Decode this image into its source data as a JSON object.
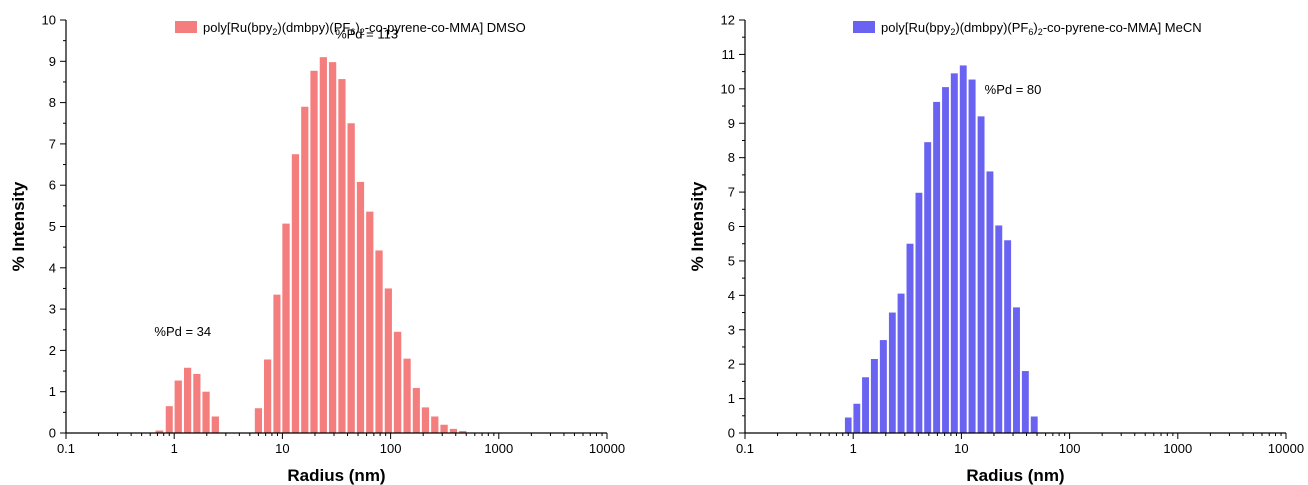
{
  "chart_data": [
    {
      "type": "bar",
      "x_scale": "log",
      "xlabel": "Radius (nm)",
      "ylabel": "% Intensity",
      "xlim": [
        0.1,
        10000
      ],
      "ylim": [
        0,
        10
      ],
      "x_tick_labels": [
        "0.1",
        "1",
        "10",
        "100",
        "1000",
        "10000"
      ],
      "y_tick_labels": [
        "0",
        "1",
        "2",
        "3",
        "4",
        "5",
        "6",
        "7",
        "8",
        "9",
        "10"
      ],
      "grid": false,
      "legend_position": "top-right",
      "color": "#f47e7e",
      "series": [
        {
          "name": {
            "pre": "poly[Ru(bpy",
            "s1": "2",
            "mid1": ")(dmbpy)(PF",
            "s2": "6",
            "mid2": ")",
            "s3": "2",
            "post": "-co-pyrene-co-MMA] DMSO"
          },
          "x": [
            0.73,
            0.9,
            1.09,
            1.33,
            1.62,
            1.97,
            2.4,
            2.93,
            6.0,
            7.3,
            8.9,
            10.8,
            13.2,
            16.1,
            19.6,
            23.9,
            29.1,
            35.5,
            43.2,
            52.7,
            64.2,
            78.2,
            95.3,
            116,
            142,
            173,
            210,
            256,
            312,
            381,
            464,
            565
          ],
          "values": [
            0.06,
            0.65,
            1.27,
            1.58,
            1.43,
            1.0,
            0.4,
            0.0,
            0.6,
            1.78,
            3.35,
            5.07,
            6.75,
            7.9,
            8.77,
            9.1,
            8.98,
            8.57,
            7.5,
            6.08,
            5.36,
            4.42,
            3.5,
            2.45,
            1.8,
            1.09,
            0.62,
            0.4,
            0.2,
            0.1,
            0.05,
            0.0
          ]
        }
      ],
      "annotations": [
        {
          "text": "%Pd = 113",
          "x": 60,
          "y": 9.55
        },
        {
          "text": "%Pd = 34",
          "x": 1.2,
          "y": 2.35
        }
      ]
    },
    {
      "type": "bar",
      "x_scale": "log",
      "xlabel": "Radius (nm)",
      "ylabel": "% Intensity",
      "xlim": [
        0.1,
        10000
      ],
      "ylim": [
        0,
        12
      ],
      "x_tick_labels": [
        "0.1",
        "1",
        "10",
        "100",
        "1000",
        "10000"
      ],
      "y_tick_labels": [
        "0",
        "1",
        "2",
        "3",
        "4",
        "5",
        "6",
        "7",
        "8",
        "9",
        "10",
        "11",
        "12"
      ],
      "grid": false,
      "legend_position": "top-right",
      "color": "#6a63f2",
      "series": [
        {
          "name": {
            "pre": "poly[Ru(bpy",
            "s1": "2",
            "mid1": ")(dmbpy)(PF",
            "s2": "6",
            "mid2": ")",
            "s3": "2",
            "post": "-co-pyrene-co-MMA] MeCN"
          },
          "x": [
            0.9,
            1.08,
            1.3,
            1.57,
            1.9,
            2.3,
            2.77,
            3.35,
            4.05,
            4.88,
            5.9,
            7.13,
            8.6,
            10.4,
            12.55,
            15.2,
            18.35,
            22.15,
            26.75,
            32.3,
            39.0,
            47.1,
            56.9
          ],
          "values": [
            0.45,
            0.85,
            1.62,
            2.15,
            2.7,
            3.5,
            4.05,
            5.5,
            6.98,
            8.45,
            9.62,
            10.05,
            10.45,
            10.68,
            10.27,
            9.2,
            7.6,
            6.03,
            5.6,
            3.65,
            1.8,
            0.48,
            0.0
          ]
        }
      ],
      "annotations": [
        {
          "text": "%Pd = 80",
          "x": 30,
          "y": 9.85
        }
      ]
    }
  ]
}
